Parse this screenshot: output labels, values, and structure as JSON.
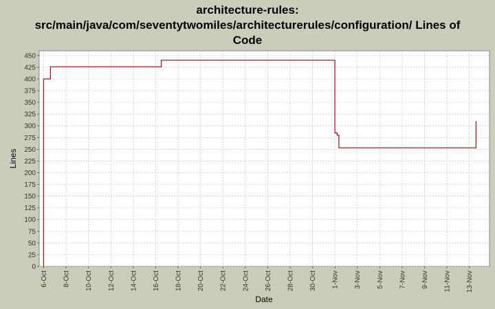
{
  "chart_data": {
    "type": "line",
    "step": true,
    "title_lines": [
      "architecture-rules:",
      "src/main/java/com/seventytwomiles/architecturerules/configuration/ Lines of",
      "Code"
    ],
    "xlabel": "Date",
    "ylabel": "Lines",
    "ylim": [
      0,
      460
    ],
    "yticks": [
      0,
      25,
      50,
      75,
      100,
      125,
      150,
      175,
      200,
      225,
      250,
      275,
      300,
      325,
      350,
      375,
      400,
      425,
      450
    ],
    "xlim_days": [
      -0.4,
      39.8
    ],
    "xticks": [
      {
        "day": 0,
        "label": "6-Oct"
      },
      {
        "day": 2,
        "label": "8-Oct"
      },
      {
        "day": 4,
        "label": "10-Oct"
      },
      {
        "day": 6,
        "label": "12-Oct"
      },
      {
        "day": 8,
        "label": "14-Oct"
      },
      {
        "day": 10,
        "label": "16-Oct"
      },
      {
        "day": 12,
        "label": "18-Oct"
      },
      {
        "day": 14,
        "label": "20-Oct"
      },
      {
        "day": 16,
        "label": "22-Oct"
      },
      {
        "day": 18,
        "label": "24-Oct"
      },
      {
        "day": 20,
        "label": "26-Oct"
      },
      {
        "day": 22,
        "label": "28-Oct"
      },
      {
        "day": 24,
        "label": "30-Oct"
      },
      {
        "day": 26,
        "label": "1-Nov"
      },
      {
        "day": 28,
        "label": "3-Nov"
      },
      {
        "day": 30,
        "label": "5-Nov"
      },
      {
        "day": 32,
        "label": "7-Nov"
      },
      {
        "day": 34,
        "label": "9-Nov"
      },
      {
        "day": 36,
        "label": "11-Nov"
      },
      {
        "day": 38,
        "label": "13-Nov"
      }
    ],
    "grid": true,
    "series": [
      {
        "color": "#bb0000",
        "points": [
          {
            "day": 0.0,
            "value": 0
          },
          {
            "day": 0.0,
            "value": 400
          },
          {
            "day": 0.6,
            "value": 400
          },
          {
            "day": 0.6,
            "value": 426
          },
          {
            "day": 10.5,
            "value": 426
          },
          {
            "day": 10.5,
            "value": 440
          },
          {
            "day": 26.0,
            "value": 440
          },
          {
            "day": 26.0,
            "value": 285
          },
          {
            "day": 26.2,
            "value": 285
          },
          {
            "day": 26.2,
            "value": 280
          },
          {
            "day": 26.35,
            "value": 280
          },
          {
            "day": 26.35,
            "value": 253
          },
          {
            "day": 38.6,
            "value": 253
          },
          {
            "day": 38.6,
            "value": 310
          }
        ]
      }
    ],
    "colors": {
      "background": "#ccccbb",
      "plot_background": "#ffffff",
      "grid": "#c0c0c0",
      "line": "#bb0000"
    }
  }
}
